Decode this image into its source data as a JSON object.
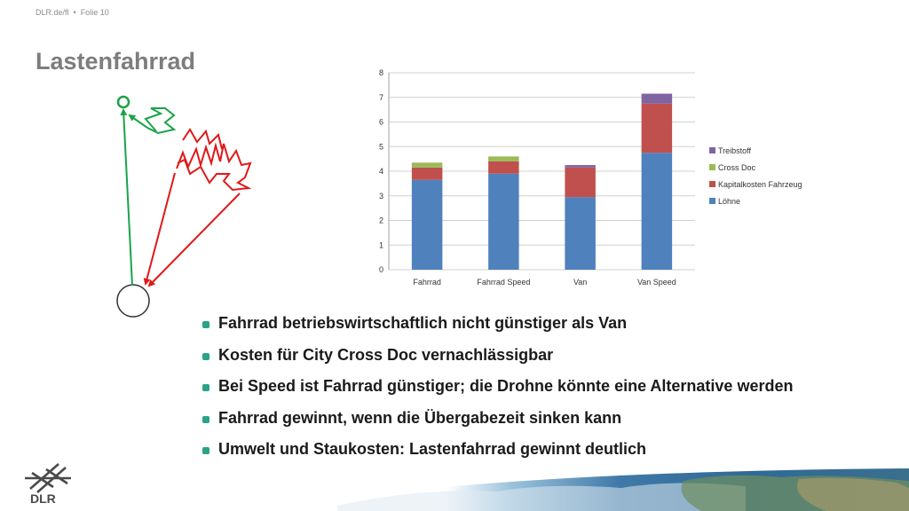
{
  "header": {
    "source": "DLR.de/fl",
    "separator": "•",
    "slide_label": "Folie 10"
  },
  "title": "Lastenfahrrad",
  "bullets": [
    "Fahrrad betriebswirtschaftlich nicht günstiger als Van",
    "Kosten für City Cross Doc vernachlässigbar",
    "Bei Speed ist Fahrrad günstiger; die Drohne könnte eine Alternative werden",
    "Fahrrad gewinnt, wenn die Übergabezeit sinken kann",
    "Umwelt und Staukosten: Lastenfahrrad gewinnt deutlich"
  ],
  "logo": {
    "text": "DLR"
  },
  "colors": {
    "green": "#1aa34a",
    "red": "#e01818",
    "bullet": "#2aa38a",
    "title": "#7d7d7d"
  },
  "chart_data": {
    "type": "bar",
    "stacked": true,
    "categories": [
      "Fahrrad",
      "Fahrrad Speed",
      "Van",
      "Van Speed"
    ],
    "series": [
      {
        "name": "Löhne",
        "color": "#4f81bd",
        "values": [
          3.65,
          3.9,
          2.95,
          4.75
        ]
      },
      {
        "name": "Kapitalkosten Fahrzeug",
        "color": "#c0504d",
        "values": [
          0.5,
          0.5,
          1.2,
          2.0
        ]
      },
      {
        "name": "Cross Doc",
        "color": "#9bbb59",
        "values": [
          0.2,
          0.2,
          0.0,
          0.0
        ]
      },
      {
        "name": "Treibstoff",
        "color": "#8064a2",
        "values": [
          0.0,
          0.0,
          0.1,
          0.4
        ]
      }
    ],
    "ylim": [
      0,
      8
    ],
    "yticks": [
      0,
      1,
      2,
      3,
      4,
      5,
      6,
      7,
      8
    ],
    "grid": true,
    "legend_position": "right"
  }
}
